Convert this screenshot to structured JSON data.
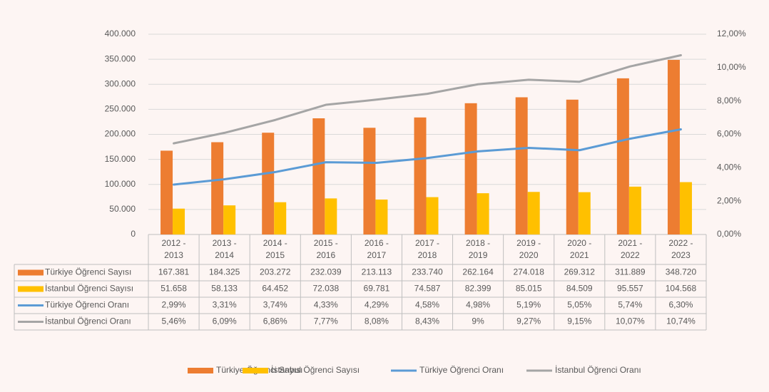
{
  "chart_data": {
    "type": "bar",
    "categories": [
      "2012 - 2013",
      "2013 - 2014",
      "2014 - 2015",
      "2015 - 2016",
      "2016 - 2017",
      "2017 - 2018",
      "2018 - 2019",
      "2019 - 2020",
      "2020 - 2021",
      "2021 - 2022",
      "2022 - 2023"
    ],
    "series": [
      {
        "name": "Türkiye Öğrenci Sayısı",
        "type": "bar",
        "color": "#ed7d31",
        "values": [
          167381,
          184325,
          203272,
          232039,
          213113,
          233740,
          262164,
          274018,
          269312,
          311889,
          348720
        ],
        "value_labels": [
          "167.381",
          "184.325",
          "203.272",
          "232.039",
          "213.113",
          "233.740",
          "262.164",
          "274.018",
          "269.312",
          "311.889",
          "348.720"
        ]
      },
      {
        "name": "İstanbul Öğrenci Sayısı",
        "type": "bar",
        "color": "#ffc000",
        "values": [
          51658,
          58133,
          64452,
          72038,
          69781,
          74587,
          82399,
          85015,
          84509,
          95557,
          104568
        ],
        "value_labels": [
          "51.658",
          "58.133",
          "64.452",
          "72.038",
          "69.781",
          "74.587",
          "82.399",
          "85.015",
          "84.509",
          "95.557",
          "104.568"
        ]
      },
      {
        "name": "Türkiye Öğrenci Oranı",
        "type": "line",
        "axis": "y2",
        "color": "#5b9bd5",
        "values": [
          2.99,
          3.31,
          3.74,
          4.33,
          4.29,
          4.58,
          4.98,
          5.19,
          5.05,
          5.74,
          6.3
        ],
        "value_labels": [
          "2,99%",
          "3,31%",
          "3,74%",
          "4,33%",
          "4,29%",
          "4,58%",
          "4,98%",
          "5,19%",
          "5,05%",
          "5,74%",
          "6,30%"
        ]
      },
      {
        "name": "İstanbul Öğrenci Oranı",
        "type": "line",
        "axis": "y2",
        "color": "#a5a5a5",
        "values": [
          5.46,
          6.09,
          6.86,
          7.77,
          8.08,
          8.43,
          9,
          9.27,
          9.15,
          10.07,
          10.74
        ],
        "value_labels": [
          "5,46%",
          "6,09%",
          "6,86%",
          "7,77%",
          "8,08%",
          "8,43%",
          "9%",
          "9,27%",
          "9,15%",
          "10,07%",
          "10,74%"
        ]
      }
    ],
    "ylim": [
      0,
      400000
    ],
    "yticks": [
      0,
      {
        "value": 50000,
        "label": "50.000"
      },
      {
        "value": 100000,
        "label": "100.000"
      },
      {
        "value": 150000,
        "label": "150.000"
      },
      {
        "value": 200000,
        "label": "200.000"
      },
      {
        "value": 250000,
        "label": "250.000"
      },
      {
        "value": 300000,
        "label": "300.000"
      },
      {
        "value": 350000,
        "label": "350.000"
      },
      {
        "value": 400000,
        "label": "400.000"
      }
    ],
    "y2lim": [
      0,
      12
    ],
    "y2ticks": [
      {
        "value": 0,
        "label": "0,00%"
      },
      {
        "value": 2,
        "label": "2,00%"
      },
      {
        "value": 4,
        "label": "4,00%"
      },
      {
        "value": 6,
        "label": "6,00%"
      },
      {
        "value": 8,
        "label": "8,00%"
      },
      {
        "value": 10,
        "label": "10,00%"
      },
      {
        "value": 12,
        "label": "12,00%"
      }
    ],
    "grid": true,
    "legend": "bottom"
  }
}
